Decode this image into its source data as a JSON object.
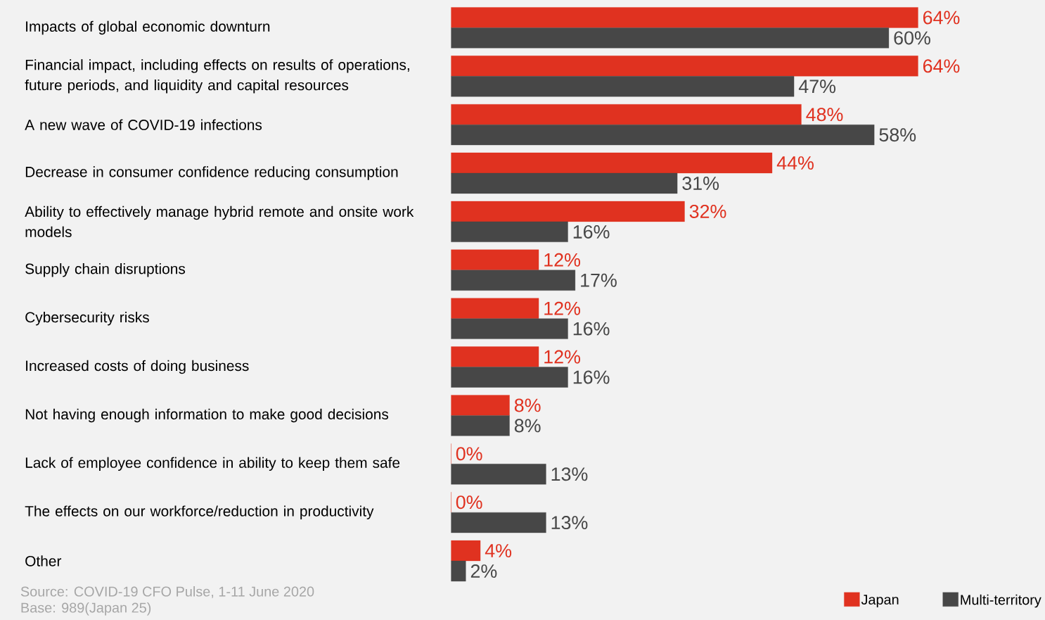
{
  "chart_data": {
    "type": "bar",
    "orientation": "horizontal",
    "categories": [
      "Impacts of global economic downturn",
      "Financial impact, including effects on results of operations, future periods, and liquidity and capital resources",
      "A new wave of COVID-19 infections",
      "Decrease in consumer confidence reducing consumption",
      "Ability to effectively manage hybrid remote and onsite work models",
      "Supply chain disruptions",
      "Cybersecurity risks",
      "Increased costs of doing business",
      "Not having enough information to make good decisions",
      "Lack of employee confidence in ability to keep them safe",
      "The effects on our workforce/reduction in productivity",
      "Other"
    ],
    "series": [
      {
        "name": "Japan",
        "color": "#e03220",
        "values": [
          64,
          64,
          48,
          44,
          32,
          12,
          12,
          12,
          8,
          0,
          0,
          4
        ],
        "value_labels": [
          "64%",
          "64%",
          "48%",
          "44%",
          "32%",
          "12%",
          "12%",
          "12%",
          "8%",
          "0%",
          "0%",
          "4%"
        ]
      },
      {
        "name": "Multi-territory",
        "color": "#474747",
        "values": [
          60,
          47,
          58,
          31,
          16,
          17,
          16,
          16,
          8,
          13,
          13,
          2
        ],
        "value_labels": [
          "60%",
          "47%",
          "58%",
          "31%",
          "16%",
          "17%",
          "16%",
          "16%",
          "8%",
          "13%",
          "13%",
          "2%"
        ]
      }
    ],
    "legend": "bottom right",
    "annotations": [
      "Source: COVID-19 CFO Pulse, 1-11 June 2020",
      "Base: 989(Japan 25)"
    ]
  }
}
